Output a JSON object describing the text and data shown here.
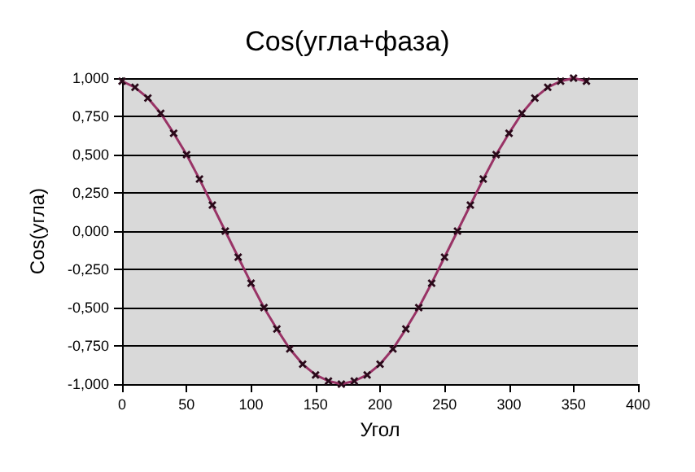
{
  "chart_data": {
    "type": "line",
    "title": "Cos(угла+фаза)",
    "xlabel": "Угол",
    "ylabel": "Cos(угла)",
    "x": [
      0,
      10,
      20,
      30,
      40,
      50,
      60,
      70,
      80,
      90,
      100,
      110,
      120,
      130,
      140,
      150,
      160,
      170,
      180,
      190,
      200,
      210,
      220,
      230,
      240,
      250,
      260,
      270,
      280,
      290,
      300,
      310,
      320,
      330,
      340,
      350,
      360
    ],
    "series": [
      {
        "color": "#993366",
        "values": [
          0.98,
          0.94,
          0.87,
          0.77,
          0.64,
          0.5,
          0.34,
          0.17,
          0,
          -0.17,
          -0.34,
          -0.5,
          -0.64,
          -0.77,
          -0.87,
          -0.94,
          -0.98,
          -1,
          -0.98,
          -0.94,
          -0.87,
          -0.77,
          -0.64,
          -0.5,
          -0.34,
          -0.17,
          0,
          0.17,
          0.34,
          0.5,
          0.64,
          0.77,
          0.87,
          0.94,
          0.98,
          1,
          0.98
        ]
      }
    ],
    "xlim": [
      0,
      400
    ],
    "xticks": [
      0,
      50,
      100,
      150,
      200,
      250,
      300,
      350,
      400
    ],
    "ylim": [
      -1,
      1
    ],
    "yticks": [
      {
        "value": -1,
        "label": "-1,000"
      },
      {
        "value": -0.75,
        "label": "-0,750"
      },
      {
        "value": -0.5,
        "label": "-0,500"
      },
      {
        "value": -0.25,
        "label": "-0,250"
      },
      {
        "value": 0,
        "label": "0,000"
      },
      {
        "value": 0.25,
        "label": "0,250"
      },
      {
        "value": 0.5,
        "label": "0,500"
      },
      {
        "value": 0.75,
        "label": "0,750"
      },
      {
        "value": 1,
        "label": "1,000"
      }
    ],
    "grid": "y",
    "marker": "cross",
    "line_style": "solid"
  }
}
